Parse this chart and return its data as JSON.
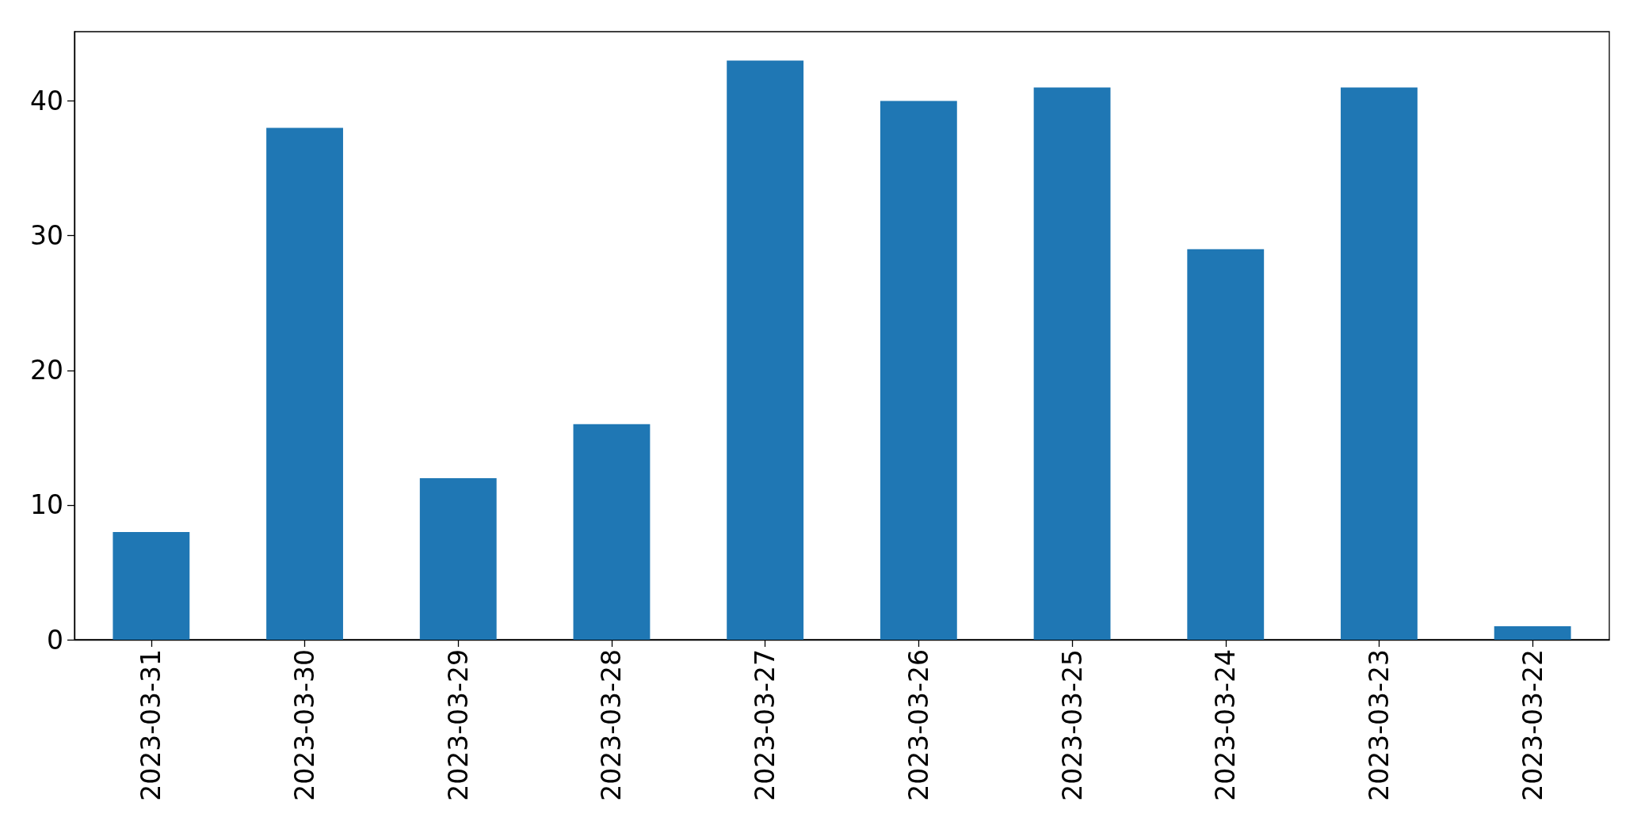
{
  "chart_data": {
    "type": "bar",
    "categories": [
      "2023-03-31",
      "2023-03-30",
      "2023-03-29",
      "2023-03-28",
      "2023-03-27",
      "2023-03-26",
      "2023-03-25",
      "2023-03-24",
      "2023-03-23",
      "2023-03-22"
    ],
    "values": [
      8,
      38,
      12,
      16,
      43,
      40,
      41,
      29,
      41,
      1
    ],
    "color": "#1f77b4",
    "ylim": [
      0,
      45.15
    ],
    "yticks": [
      0,
      10,
      20,
      30,
      40
    ],
    "grid": false
  }
}
